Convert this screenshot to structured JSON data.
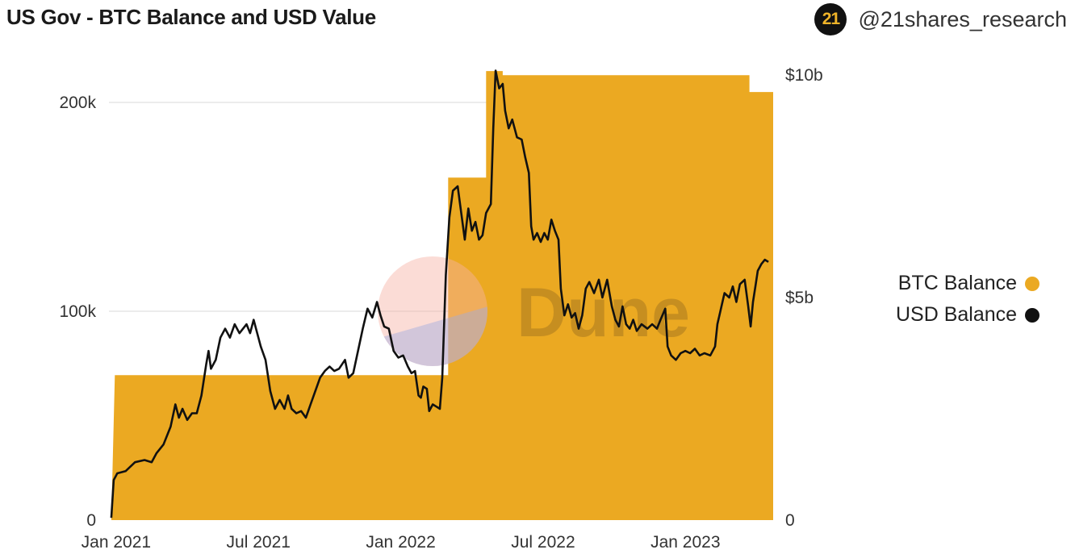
{
  "header": {
    "title": "US Gov - BTC Balance and USD Value",
    "brand_logo": "21",
    "brand_handle": "@21shares_research"
  },
  "watermark": {
    "text": "Dune"
  },
  "colors": {
    "btc": "#eba922",
    "usd": "#111111",
    "grid": "#e6e6e6"
  },
  "chart_data": {
    "type": "area+line",
    "title": "US Gov - BTC Balance and USD Value",
    "x_ticks": [
      {
        "label": "Jan 2021",
        "t": 0
      },
      {
        "label": "Jul 2021",
        "t": 6
      },
      {
        "label": "Jan 2022",
        "t": 12
      },
      {
        "label": "Jul 2022",
        "t": 18
      },
      {
        "label": "Jan 2023",
        "t": 24
      }
    ],
    "x_range_months": [
      -0.2,
      27.8
    ],
    "left_axis": {
      "label": "BTC Balance",
      "range": [
        0,
        200000
      ],
      "ticks": [
        "0",
        "100k",
        "200k"
      ],
      "tick_values": [
        0,
        100000,
        200000
      ]
    },
    "right_axis": {
      "label": "USD Balance",
      "range": [
        0,
        10
      ],
      "unit": "billion USD",
      "ticks": [
        "0",
        "$5b",
        "$10b"
      ],
      "tick_values": [
        0,
        5,
        10
      ]
    },
    "series": [
      {
        "name": "BTC Balance",
        "kind": "area",
        "axis": "left",
        "points": [
          [
            -0.2,
            0
          ],
          [
            -0.1,
            0
          ],
          [
            0.05,
            69400
          ],
          [
            14.1,
            69400
          ],
          [
            14.1,
            164000
          ],
          [
            15.7,
            164000
          ],
          [
            15.7,
            215000
          ],
          [
            16.4,
            215000
          ],
          [
            16.4,
            213000
          ],
          [
            26.8,
            213000
          ],
          [
            26.8,
            205000
          ],
          [
            27.8,
            205000
          ]
        ]
      },
      {
        "name": "USD Balance",
        "kind": "line",
        "axis": "right",
        "points": [
          [
            -0.1,
            0.05
          ],
          [
            0.0,
            0.9
          ],
          [
            0.15,
            1.05
          ],
          [
            0.5,
            1.1
          ],
          [
            0.9,
            1.3
          ],
          [
            1.3,
            1.35
          ],
          [
            1.6,
            1.3
          ],
          [
            1.8,
            1.5
          ],
          [
            2.1,
            1.7
          ],
          [
            2.4,
            2.1
          ],
          [
            2.6,
            2.6
          ],
          [
            2.75,
            2.3
          ],
          [
            2.9,
            2.5
          ],
          [
            3.1,
            2.25
          ],
          [
            3.3,
            2.4
          ],
          [
            3.5,
            2.4
          ],
          [
            3.7,
            2.8
          ],
          [
            3.9,
            3.5
          ],
          [
            4.0,
            3.8
          ],
          [
            4.1,
            3.4
          ],
          [
            4.3,
            3.6
          ],
          [
            4.5,
            4.1
          ],
          [
            4.7,
            4.3
          ],
          [
            4.9,
            4.1
          ],
          [
            5.1,
            4.4
          ],
          [
            5.3,
            4.2
          ],
          [
            5.6,
            4.4
          ],
          [
            5.75,
            4.2
          ],
          [
            5.9,
            4.5
          ],
          [
            6.0,
            4.3
          ],
          [
            6.2,
            3.9
          ],
          [
            6.4,
            3.6
          ],
          [
            6.6,
            2.9
          ],
          [
            6.8,
            2.5
          ],
          [
            7.0,
            2.7
          ],
          [
            7.2,
            2.5
          ],
          [
            7.35,
            2.8
          ],
          [
            7.5,
            2.5
          ],
          [
            7.7,
            2.4
          ],
          [
            7.9,
            2.45
          ],
          [
            8.1,
            2.3
          ],
          [
            8.3,
            2.6
          ],
          [
            8.5,
            2.9
          ],
          [
            8.7,
            3.2
          ],
          [
            8.9,
            3.35
          ],
          [
            9.1,
            3.45
          ],
          [
            9.3,
            3.35
          ],
          [
            9.5,
            3.4
          ],
          [
            9.75,
            3.6
          ],
          [
            9.9,
            3.2
          ],
          [
            10.1,
            3.3
          ],
          [
            10.3,
            3.8
          ],
          [
            10.5,
            4.3
          ],
          [
            10.7,
            4.75
          ],
          [
            10.9,
            4.55
          ],
          [
            11.1,
            4.9
          ],
          [
            11.25,
            4.6
          ],
          [
            11.4,
            4.35
          ],
          [
            11.6,
            4.3
          ],
          [
            11.8,
            3.8
          ],
          [
            12.0,
            3.65
          ],
          [
            12.2,
            3.7
          ],
          [
            12.4,
            3.45
          ],
          [
            12.55,
            3.3
          ],
          [
            12.7,
            3.35
          ],
          [
            12.85,
            2.8
          ],
          [
            12.95,
            2.75
          ],
          [
            13.05,
            3.0
          ],
          [
            13.2,
            2.95
          ],
          [
            13.3,
            2.45
          ],
          [
            13.45,
            2.6
          ],
          [
            13.6,
            2.55
          ],
          [
            13.75,
            2.5
          ],
          [
            13.85,
            3.2
          ],
          [
            14.0,
            5.5
          ],
          [
            14.15,
            6.8
          ],
          [
            14.3,
            7.4
          ],
          [
            14.5,
            7.5
          ],
          [
            14.65,
            6.9
          ],
          [
            14.8,
            6.3
          ],
          [
            14.95,
            7.0
          ],
          [
            15.1,
            6.5
          ],
          [
            15.25,
            6.7
          ],
          [
            15.4,
            6.3
          ],
          [
            15.55,
            6.4
          ],
          [
            15.7,
            6.9
          ],
          [
            15.9,
            7.1
          ],
          [
            16.0,
            8.8
          ],
          [
            16.1,
            10.1
          ],
          [
            16.25,
            9.7
          ],
          [
            16.4,
            9.8
          ],
          [
            16.5,
            9.2
          ],
          [
            16.65,
            8.8
          ],
          [
            16.8,
            9.0
          ],
          [
            17.0,
            8.6
          ],
          [
            17.2,
            8.55
          ],
          [
            17.35,
            8.15
          ],
          [
            17.5,
            7.8
          ],
          [
            17.6,
            6.6
          ],
          [
            17.7,
            6.3
          ],
          [
            17.85,
            6.45
          ],
          [
            18.0,
            6.25
          ],
          [
            18.15,
            6.45
          ],
          [
            18.3,
            6.3
          ],
          [
            18.45,
            6.75
          ],
          [
            18.6,
            6.5
          ],
          [
            18.75,
            6.3
          ],
          [
            18.85,
            5.2
          ],
          [
            19.0,
            4.6
          ],
          [
            19.15,
            4.85
          ],
          [
            19.3,
            4.55
          ],
          [
            19.45,
            4.65
          ],
          [
            19.6,
            4.3
          ],
          [
            19.75,
            4.6
          ],
          [
            19.9,
            5.2
          ],
          [
            20.05,
            5.35
          ],
          [
            20.25,
            5.1
          ],
          [
            20.45,
            5.4
          ],
          [
            20.6,
            5.0
          ],
          [
            20.8,
            5.4
          ],
          [
            21.0,
            4.8
          ],
          [
            21.15,
            4.5
          ],
          [
            21.3,
            4.35
          ],
          [
            21.45,
            4.8
          ],
          [
            21.6,
            4.4
          ],
          [
            21.75,
            4.3
          ],
          [
            21.9,
            4.5
          ],
          [
            22.05,
            4.25
          ],
          [
            22.25,
            4.4
          ],
          [
            22.5,
            4.3
          ],
          [
            22.7,
            4.4
          ],
          [
            22.9,
            4.3
          ],
          [
            23.05,
            4.5
          ],
          [
            23.25,
            4.75
          ],
          [
            23.35,
            3.9
          ],
          [
            23.5,
            3.7
          ],
          [
            23.7,
            3.6
          ],
          [
            23.9,
            3.75
          ],
          [
            24.1,
            3.8
          ],
          [
            24.3,
            3.75
          ],
          [
            24.5,
            3.85
          ],
          [
            24.7,
            3.7
          ],
          [
            24.9,
            3.75
          ],
          [
            25.15,
            3.7
          ],
          [
            25.35,
            3.9
          ],
          [
            25.45,
            4.4
          ],
          [
            25.6,
            4.75
          ],
          [
            25.75,
            5.1
          ],
          [
            25.95,
            5.0
          ],
          [
            26.1,
            5.25
          ],
          [
            26.25,
            4.9
          ],
          [
            26.4,
            5.3
          ],
          [
            26.6,
            5.4
          ],
          [
            26.75,
            4.8
          ],
          [
            26.85,
            4.35
          ],
          [
            26.95,
            4.9
          ],
          [
            27.05,
            5.25
          ],
          [
            27.15,
            5.6
          ],
          [
            27.3,
            5.75
          ],
          [
            27.45,
            5.85
          ],
          [
            27.6,
            5.8
          ]
        ]
      }
    ],
    "legend": [
      "BTC Balance",
      "USD Balance"
    ],
    "legend_position": "right"
  }
}
